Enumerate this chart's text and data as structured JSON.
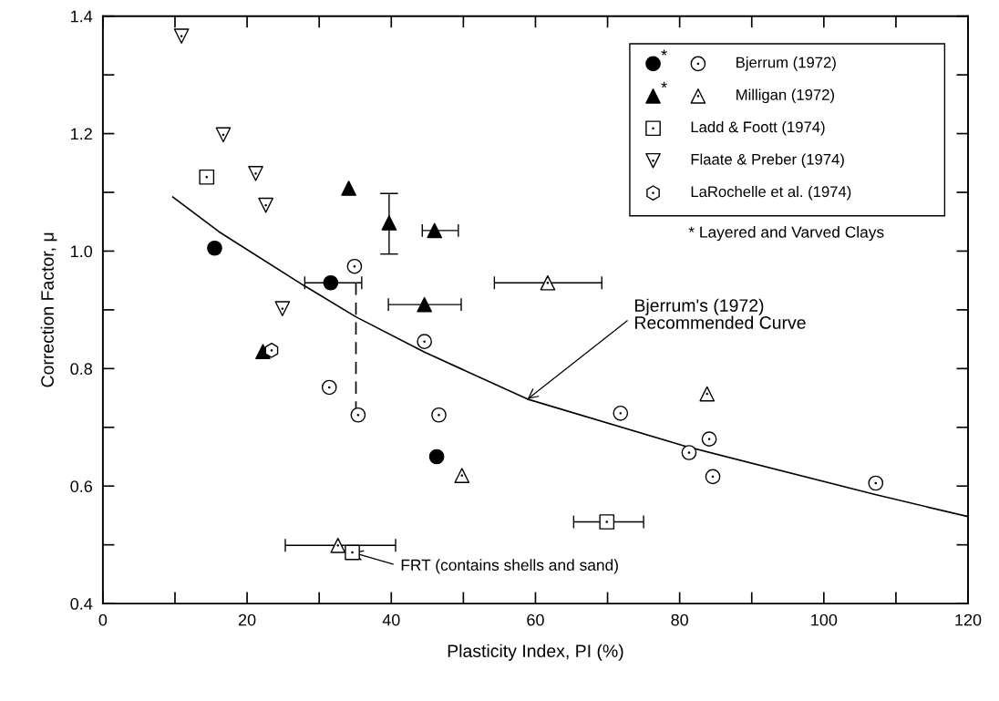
{
  "chart_data": {
    "type": "scatter",
    "xlabel": "Plasticity Index, PI (%)",
    "ylabel": "Correction Factor, μ",
    "xlim": [
      0,
      120
    ],
    "ylim": [
      0.4,
      1.4
    ],
    "xticks": [
      0,
      {
        "value": 10,
        "label": null
      },
      20,
      {
        "value": 30,
        "label": null
      },
      40,
      {
        "value": 50,
        "label": null
      },
      60,
      {
        "value": 70,
        "label": null
      },
      80,
      {
        "value": 90,
        "label": null
      },
      100,
      {
        "value": 110,
        "label": null
      },
      120
    ],
    "yticks": [
      {
        "value": 0.4,
        "label": "0.4"
      },
      {
        "value": 0.5,
        "label": null
      },
      {
        "value": 0.6,
        "label": "0.6"
      },
      {
        "value": 0.7,
        "label": null
      },
      {
        "value": 0.8,
        "label": "0.8"
      },
      {
        "value": 0.9,
        "label": null
      },
      {
        "value": 1.0,
        "label": "1.0"
      },
      {
        "value": 1.1,
        "label": null
      },
      {
        "value": 1.2,
        "label": "1.2"
      },
      {
        "value": 1.3,
        "label": null
      },
      {
        "value": 1.4,
        "label": "1.4"
      }
    ],
    "grid": false,
    "legend": "top right",
    "series": [
      {
        "name": "Bjerrum (1972)",
        "marker": "circle",
        "color": "#ffffff",
        "x": [
          34.9,
          44.6,
          31.4,
          35.4,
          46.6,
          71.8,
          81.3,
          84.1,
          84.6,
          107.2
        ],
        "values": [
          0.974,
          0.846,
          0.768,
          0.721,
          0.721,
          0.724,
          0.657,
          0.68,
          0.616,
          0.605
        ]
      },
      {
        "name": "*",
        "marker": "circle",
        "color": "#000000",
        "x": [
          31.6,
          46.3,
          15.5
        ],
        "values": [
          0.946,
          0.65,
          1.005
        ],
        "xerrors": [
          [
            28.0,
            35.9
          ],
          null,
          null
        ]
      },
      {
        "name": "Milligan (1972)",
        "marker": "triangle",
        "color": "#ffffff",
        "x": [
          61.7,
          49.8,
          83.8,
          32.6
        ],
        "values": [
          0.946,
          0.618,
          0.757,
          0.499
        ],
        "xerrors": [
          [
            54.3,
            69.2
          ],
          null,
          null,
          [
            25.3,
            40.6
          ]
        ]
      },
      {
        "name": "*",
        "marker": "triangle",
        "color": "#000000",
        "x": [
          34.1,
          39.7,
          46.0,
          44.6,
          22.2
        ],
        "values": [
          1.107,
          1.048,
          1.035,
          0.909,
          0.829
        ],
        "errors": [
          null,
          [
            0.995,
            1.098
          ],
          null,
          null,
          null
        ],
        "xerrors": [
          null,
          null,
          [
            44.3,
            49.3
          ],
          [
            39.6,
            49.7
          ],
          null
        ]
      },
      {
        "name": "Ladd & Foott (1974)",
        "marker": "square",
        "color": "#ffffff",
        "x": [
          14.4,
          69.9,
          34.6
        ],
        "values": [
          1.126,
          0.539,
          0.487
        ],
        "xerrors": [
          null,
          [
            65.3,
            75.0
          ],
          null
        ]
      },
      {
        "name": "Flaate & Preber (1974)",
        "marker": "triangle_down",
        "color": "#ffffff",
        "x": [
          10.9,
          16.7,
          21.2,
          22.6,
          24.9
        ],
        "values": [
          1.366,
          1.198,
          1.132,
          1.078,
          0.902
        ]
      },
      {
        "name": "LaRochelle et al. (1974)",
        "color": "#ffffff",
        "x": [
          23.4
        ],
        "values": [
          0.831
        ]
      },
      {
        "type": "line",
        "marker": "none",
        "line_style": "solid",
        "color": "#000000",
        "x": [
          9.7,
          16.1,
          27.8,
          35.1,
          44.6,
          58.9,
          81.3,
          107.0,
          120.0
        ],
        "values": [
          1.092,
          1.033,
          0.942,
          0.888,
          0.828,
          0.748,
          0.666,
          0.586,
          0.548
        ]
      },
      {
        "type": "line",
        "marker": "none",
        "line_style": "dashed",
        "color": "#000000",
        "x": [
          35.1,
          35.1
        ],
        "values": [
          0.946,
          0.721
        ]
      }
    ],
    "annotations": [
      {
        "text": "Bjerrum's (1972)\nRecommended Curve",
        "x": 58.9,
        "y": 0.748
      },
      {
        "text": "FRT (contains shells and sand)",
        "x": 34.6,
        "y": 0.487
      },
      "* Layered and Varved Clays"
    ]
  }
}
